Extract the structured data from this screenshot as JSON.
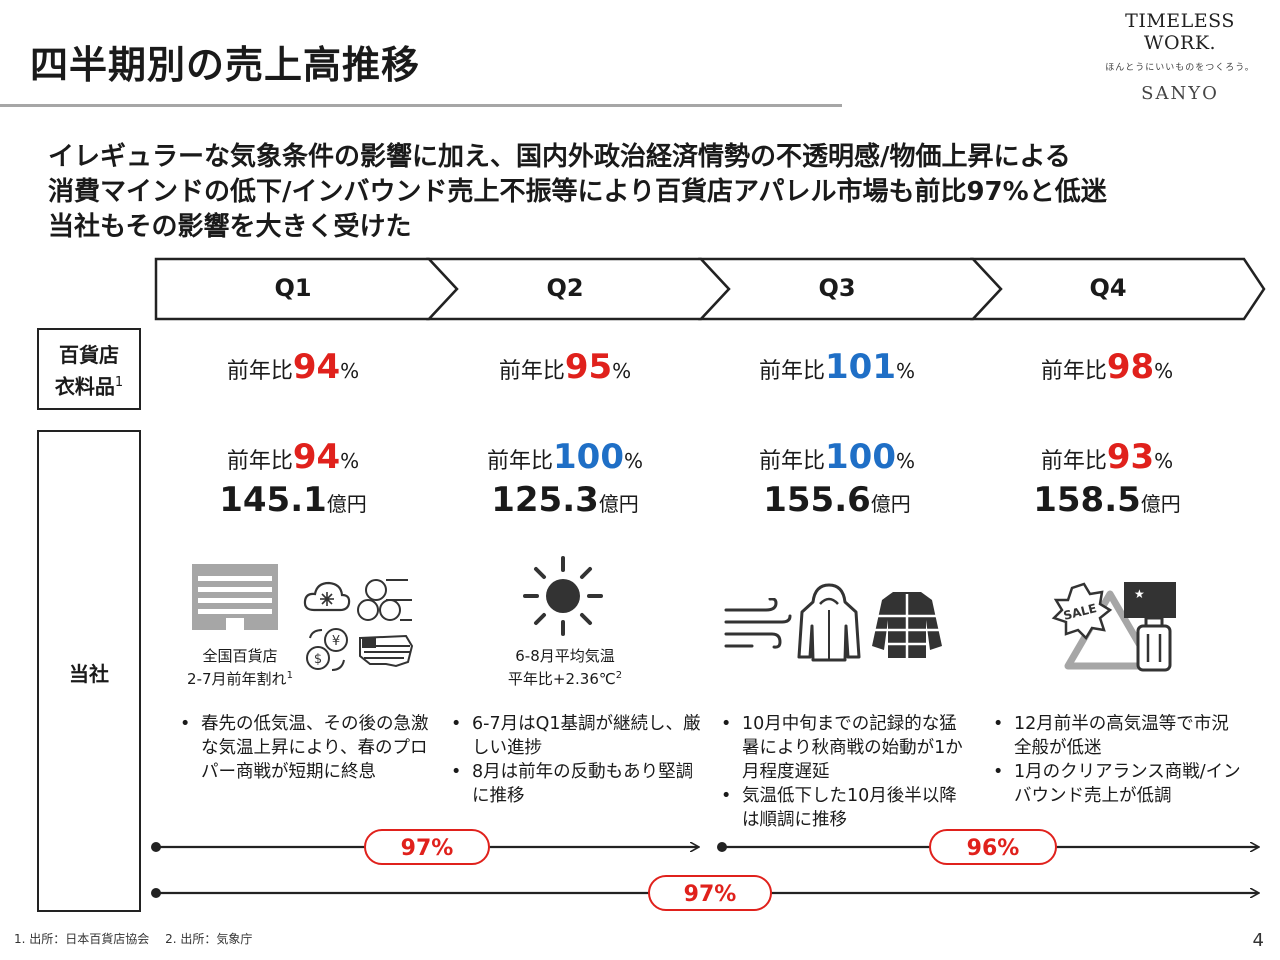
{
  "page": {
    "title": "四半期別の売上高推移",
    "brand": {
      "name": "TIMELESS WORK.",
      "tagline": "ほんとうにいいものをつくろう。",
      "company": "SANYO"
    },
    "summary_lines": [
      "イレギュラーな気象条件の影響に加え、国内外政治経済情勢の不透明感/物価上昇による",
      "消費マインドの低下/インバウンド売上不振等により百貨店アパレル市場も前比97%と低迷",
      "当社もその影響を大きく受けた"
    ],
    "row_labels": {
      "dept_line1": "百貨店",
      "dept_line2": "衣料品",
      "dept_sup": "1",
      "company": "当社"
    },
    "ratio_prefix": "前年比",
    "percent_sign": "%",
    "sales_unit": "億円",
    "quarters": [
      {
        "label": "Q1",
        "dept_ratio": "94",
        "dept_color": "red",
        "company_ratio": "94",
        "company_color": "red",
        "sales": "145.1",
        "caption_line1": "全国百貨店",
        "caption_line2": "2-7月前年割れ",
        "caption_sup": "1",
        "bullets": [
          "春先の低気温、その後の急激な気温上昇により、春のプロパー商戦が短期に終息"
        ]
      },
      {
        "label": "Q2",
        "dept_ratio": "95",
        "dept_color": "red",
        "company_ratio": "100",
        "company_color": "blue",
        "sales": "125.3",
        "caption_line1": "6-8月平均気温",
        "caption_line2": "平年比+2.36℃",
        "caption_sup": "2",
        "bullets": [
          "6-7月はQ1基調が継続し、厳しい進捗",
          "8月は前年の反動もあり堅調に推移"
        ]
      },
      {
        "label": "Q3",
        "dept_ratio": "101",
        "dept_color": "blue",
        "company_ratio": "100",
        "company_color": "blue",
        "sales": "155.6",
        "bullets": [
          "10月中旬までの記録的な猛暑により秋商戦の始動が1か月程度遅延",
          "気温低下した10月後半以降は順調に推移"
        ]
      },
      {
        "label": "Q4",
        "dept_ratio": "98",
        "dept_color": "red",
        "company_ratio": "93",
        "company_color": "red",
        "sales": "158.5",
        "icon_text": "SALE",
        "bullets": [
          "12月前半の高気温等で市況全般が低迷",
          "1月のクリアランス商戦/インバウンド売上が低調"
        ]
      }
    ],
    "period_ratios": {
      "h1": "97%",
      "h2": "96%",
      "full_year": "97%"
    },
    "footnotes": "1. 出所：日本百貨店協会　 2. 出所：気象庁",
    "page_number": "4",
    "colors": {
      "red": "#e0211c",
      "blue": "#1f6fc6",
      "gray_icon": "#a6a6a6",
      "dark_icon": "#333333"
    }
  }
}
